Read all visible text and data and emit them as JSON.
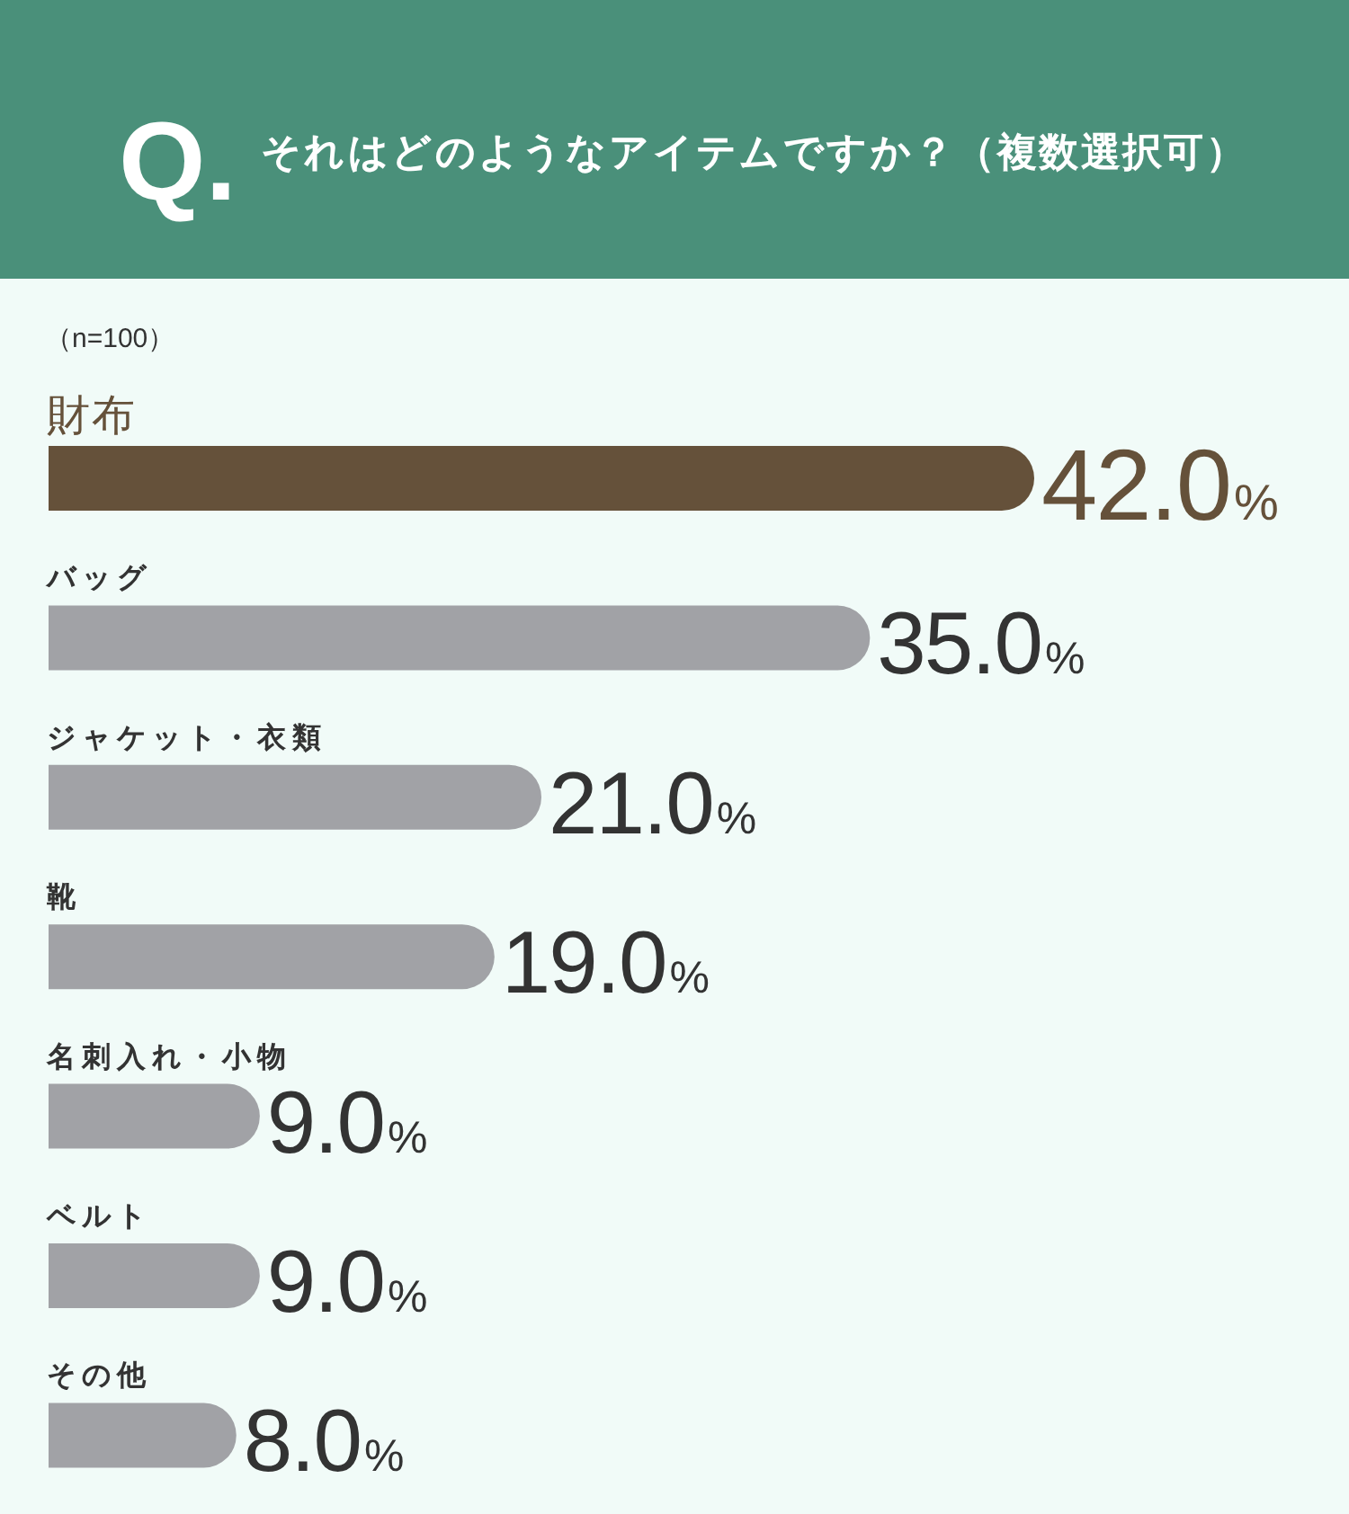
{
  "chart_data": {
    "type": "bar",
    "orientation": "horizontal",
    "title": "Q. それはどのようなアイテムですか？（複数選択可）",
    "subtitle": "（n=100）",
    "categories": [
      "財布",
      "バッグ",
      "ジャケット・衣類",
      "靴",
      "名刺入れ・小物",
      "ベルト",
      "その他"
    ],
    "values": [
      42.0,
      35.0,
      21.0,
      19.0,
      9.0,
      9.0,
      8.0
    ],
    "colors": [
      "#65513a",
      "#a1a2a6",
      "#a1a2a6",
      "#a1a2a6",
      "#a1a2a6",
      "#a1a2a6",
      "#a1a2a6"
    ],
    "value_labels": [
      "42.0%",
      "35.0%",
      "21.0%",
      "19.0%",
      "9.0%",
      "9.0%",
      "8.0%"
    ]
  }
}
